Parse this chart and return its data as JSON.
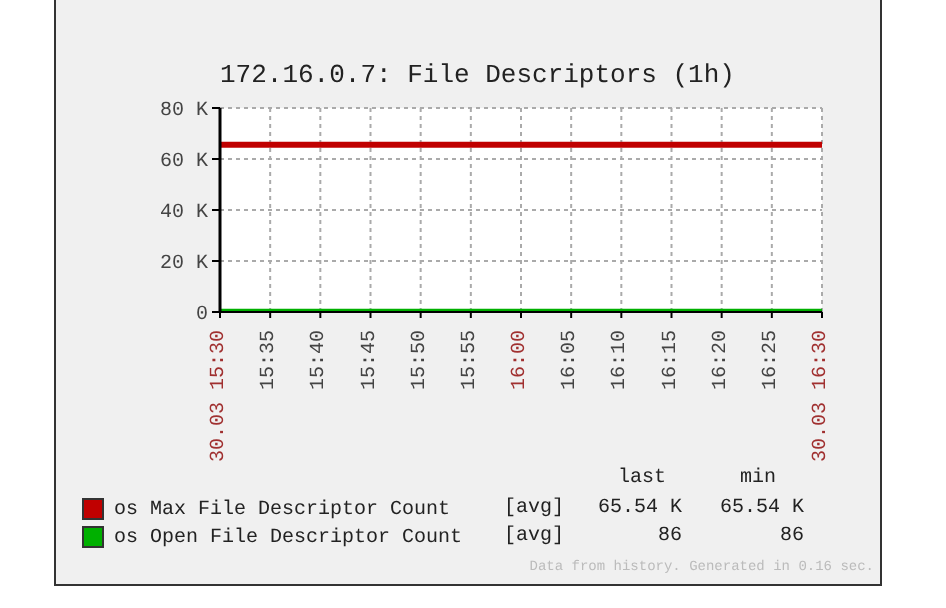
{
  "chart_data": {
    "type": "line",
    "title": "172.16.0.7: File Descriptors (1h)",
    "x": [
      15.5,
      16.5
    ],
    "series": [
      {
        "name": "os Max File Descriptor Count",
        "color": "#c00000",
        "values": [
          65540,
          65540
        ]
      },
      {
        "name": "os Open File Descriptor Count",
        "color": "#00b000",
        "values": [
          86,
          86
        ]
      }
    ],
    "xlim": [
      15.5,
      16.5
    ],
    "xticks": [
      {
        "value": 15.5,
        "label": "30.03 15:30"
      },
      {
        "value": 15.583333,
        "label": "15:35"
      },
      {
        "value": 15.666667,
        "label": "15:40"
      },
      {
        "value": 15.75,
        "label": "15:45"
      },
      {
        "value": 15.833333,
        "label": "15:50"
      },
      {
        "value": 15.916667,
        "label": "15:55"
      },
      {
        "value": 16,
        "label": "16:00"
      },
      {
        "value": 16.083333,
        "label": "16:05"
      },
      {
        "value": 16.166667,
        "label": "16:10"
      },
      {
        "value": 16.25,
        "label": "16:15"
      },
      {
        "value": 16.333333,
        "label": "16:20"
      },
      {
        "value": 16.416667,
        "label": "16:25"
      },
      {
        "value": 16.5,
        "label": "30.03 16:30"
      }
    ],
    "ylim": [
      0,
      80000
    ],
    "yticks": [
      0,
      {
        "value": 20000,
        "label": "20 K"
      },
      {
        "value": 40000,
        "label": "40 K"
      },
      {
        "value": 60000,
        "label": "60 K"
      },
      {
        "value": 80000,
        "label": "80 K"
      }
    ],
    "grid": true,
    "legend": "bottom",
    "marker": "none",
    "line_style": "solid",
    "annotations": [
      "last",
      "min",
      "[avg]",
      "65.54 K",
      "65.54 K",
      "[avg]",
      "86",
      "86",
      "Data from history. Generated in 0.16 sec."
    ]
  }
}
